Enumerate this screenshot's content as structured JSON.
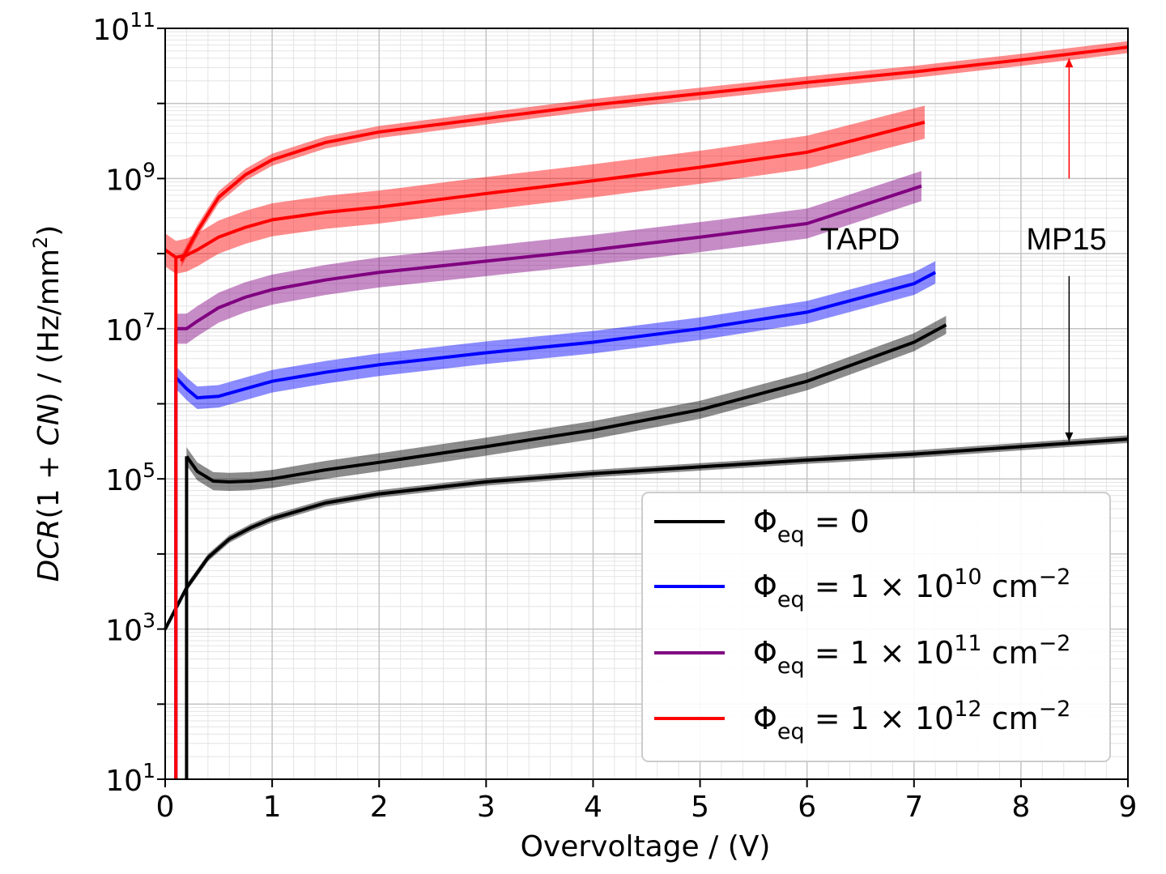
{
  "chart_data": {
    "type": "line",
    "title": "",
    "xlabel": "Overvoltage / (V)",
    "ylabel": "DCR(1 + CN) / (Hz/mm²)",
    "xlim": [
      0,
      9
    ],
    "ylim_log10": [
      1,
      11
    ],
    "yscale": "log",
    "x_ticks": [
      "0",
      "1",
      "2",
      "3",
      "4",
      "5",
      "6",
      "7",
      "8",
      "9"
    ],
    "y_ticks": [
      {
        "base": "10",
        "exp": "1",
        "log10": 1
      },
      {
        "base": "10",
        "exp": "3",
        "log10": 3
      },
      {
        "base": "10",
        "exp": "5",
        "log10": 5
      },
      {
        "base": "10",
        "exp": "7",
        "log10": 7
      },
      {
        "base": "10",
        "exp": "9",
        "log10": 9
      },
      {
        "base": "10",
        "exp": "11",
        "log10": 11
      }
    ],
    "grid": true,
    "legend_position": "lower-right",
    "legend": [
      {
        "sym": "Φ",
        "sub": "eq",
        "text": " = 0",
        "exp": "",
        "unit": "",
        "color": "#000000"
      },
      {
        "sym": "Φ",
        "sub": "eq",
        "text": " = 1 × 10",
        "exp": "10",
        "unit": " cm",
        "unit_exp": "−2",
        "color": "#0000ff"
      },
      {
        "sym": "Φ",
        "sub": "eq",
        "text": " = 1 × 10",
        "exp": "11",
        "unit": " cm",
        "unit_exp": "−2",
        "color": "#800080"
      },
      {
        "sym": "Φ",
        "sub": "eq",
        "text": " = 1 × 10",
        "exp": "12",
        "unit": " cm",
        "unit_exp": "−2",
        "color": "#ff0000"
      }
    ],
    "series": [
      {
        "name": "MP15 Φeq=0",
        "group": "MP15",
        "color": "#000000",
        "x": [
          0,
          0.2,
          0.4,
          0.6,
          0.8,
          1.0,
          1.5,
          2.0,
          3.0,
          4.0,
          5.0,
          6.0,
          7.0,
          8.0,
          9.0
        ],
        "log10y": [
          3.0,
          3.55,
          3.95,
          4.2,
          4.35,
          4.47,
          4.68,
          4.8,
          4.96,
          5.07,
          5.16,
          5.25,
          5.33,
          5.43,
          5.53
        ],
        "band": 0.05
      },
      {
        "name": "MP15 Φeq=1e12",
        "group": "MP15",
        "color": "#ff0000",
        "x": [
          0.15,
          0.3,
          0.5,
          0.75,
          1.0,
          1.5,
          2.0,
          3.0,
          4.0,
          5.0,
          6.0,
          7.0,
          8.0,
          9.0
        ],
        "log10y": [
          7.9,
          8.3,
          8.75,
          9.05,
          9.25,
          9.48,
          9.62,
          9.8,
          9.98,
          10.13,
          10.28,
          10.42,
          10.58,
          10.75
        ],
        "band": 0.08
      },
      {
        "name": "TAPD Φeq=0",
        "group": "TAPD",
        "color": "#000000",
        "x": [
          0.2,
          0.3,
          0.45,
          0.6,
          0.8,
          1.0,
          1.5,
          2.0,
          3.0,
          4.0,
          5.0,
          6.0,
          7.0,
          7.3
        ],
        "log10y": [
          5.3,
          5.1,
          4.97,
          4.96,
          4.97,
          5.0,
          5.12,
          5.22,
          5.43,
          5.65,
          5.92,
          6.3,
          6.82,
          7.05
        ],
        "band": 0.12
      },
      {
        "name": "TAPD Φeq=1e10",
        "group": "TAPD",
        "color": "#0000ff",
        "x": [
          0.1,
          0.2,
          0.3,
          0.5,
          0.75,
          1.0,
          1.5,
          2.0,
          3.0,
          4.0,
          5.0,
          6.0,
          7.0,
          7.2
        ],
        "log10y": [
          6.35,
          6.2,
          6.08,
          6.1,
          6.2,
          6.3,
          6.42,
          6.52,
          6.68,
          6.82,
          7.0,
          7.22,
          7.6,
          7.75
        ],
        "band": 0.15
      },
      {
        "name": "TAPD Φeq=1e11",
        "group": "TAPD",
        "color": "#800080",
        "x": [
          0.1,
          0.2,
          0.3,
          0.5,
          0.75,
          1.0,
          1.5,
          2.0,
          3.0,
          4.0,
          5.0,
          6.0,
          7.07
        ],
        "log10y": [
          7.0,
          7.0,
          7.1,
          7.28,
          7.42,
          7.52,
          7.65,
          7.75,
          7.9,
          8.05,
          8.22,
          8.4,
          8.9
        ],
        "band": 0.2
      },
      {
        "name": "TAPD Φeq=1e12",
        "group": "TAPD",
        "color": "#ff0000",
        "x": [
          0.0,
          0.1,
          0.2,
          0.3,
          0.5,
          0.75,
          1.0,
          1.5,
          2.0,
          3.0,
          4.0,
          5.0,
          6.0,
          7.1
        ],
        "log10y": [
          8.05,
          7.95,
          7.98,
          8.05,
          8.22,
          8.35,
          8.45,
          8.55,
          8.62,
          8.8,
          8.97,
          9.15,
          9.35,
          9.75
        ],
        "band": 0.22
      }
    ],
    "annotations": [
      {
        "text": "TAPD"
      },
      {
        "text": "MP15"
      }
    ],
    "arrows": [
      {
        "x": 8.45,
        "from_log10y": 9.0,
        "to_log10y": 10.6,
        "color": "#ff0000"
      },
      {
        "x": 8.45,
        "from_log10y": 7.7,
        "to_log10y": 5.5,
        "color": "#000000"
      }
    ]
  }
}
